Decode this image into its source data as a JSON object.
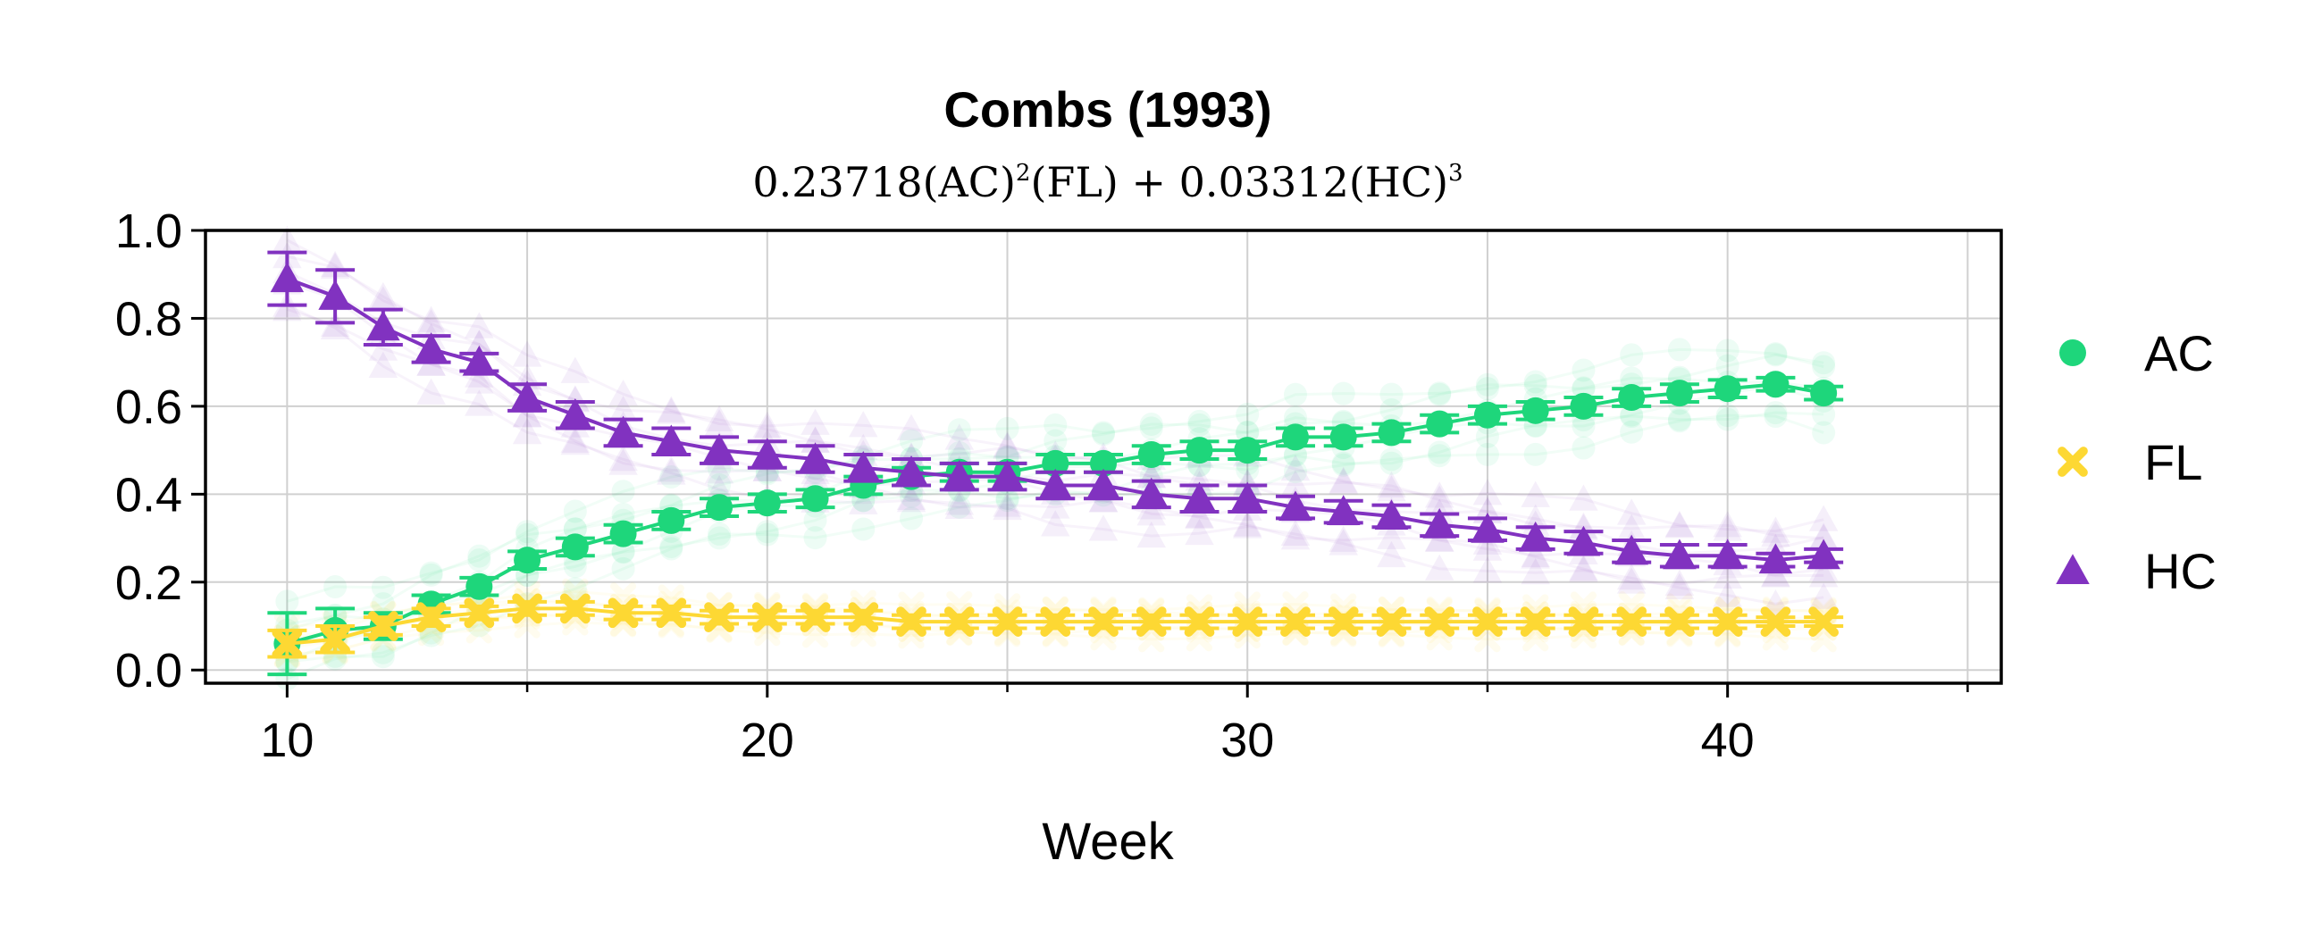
{
  "chart_data": {
    "type": "line",
    "title": "Combs (1993)",
    "subtitle": {
      "parts": [
        {
          "t": "0.23718(AC)"
        },
        {
          "t": "2",
          "sup": true
        },
        {
          "t": "(FL) + 0.03312(HC)"
        },
        {
          "t": "3",
          "sup": true
        }
      ]
    },
    "xlabel": "Week",
    "ylabel": "",
    "xlim": [
      8.3,
      45.7
    ],
    "ylim": [
      -0.03,
      1.0
    ],
    "xticks": [
      10,
      20,
      30,
      40
    ],
    "xminor": [
      15,
      25,
      35,
      45
    ],
    "yticks": [
      0.0,
      0.2,
      0.4,
      0.6,
      0.8,
      1.0
    ],
    "ytick_labels": [
      "0.0",
      "0.2",
      "0.4",
      "0.6",
      "0.8",
      "1.0"
    ],
    "grid": true,
    "legend_position": "outside-right",
    "series": [
      {
        "name": "AC",
        "color": "#1ed67b",
        "marker": "circle",
        "x": [
          10,
          11,
          12,
          13,
          14,
          15,
          16,
          17,
          18,
          19,
          20,
          21,
          22,
          23,
          24,
          25,
          26,
          27,
          28,
          29,
          30,
          31,
          32,
          33,
          34,
          35,
          36,
          37,
          38,
          39,
          40,
          41,
          42
        ],
        "y": [
          0.06,
          0.09,
          0.1,
          0.15,
          0.19,
          0.25,
          0.28,
          0.31,
          0.34,
          0.37,
          0.38,
          0.39,
          0.42,
          0.44,
          0.45,
          0.45,
          0.47,
          0.47,
          0.49,
          0.5,
          0.5,
          0.53,
          0.53,
          0.54,
          0.56,
          0.58,
          0.59,
          0.6,
          0.62,
          0.63,
          0.64,
          0.65,
          0.63
        ],
        "err": [
          0.07,
          0.05,
          0.03,
          0.02,
          0.02,
          0.02,
          0.02,
          0.02,
          0.02,
          0.02,
          0.02,
          0.02,
          0.02,
          0.02,
          0.02,
          0.02,
          0.02,
          0.02,
          0.02,
          0.02,
          0.02,
          0.02,
          0.02,
          0.02,
          0.02,
          0.02,
          0.02,
          0.02,
          0.02,
          0.02,
          0.02,
          0.015,
          0.015
        ]
      },
      {
        "name": "FL",
        "color": "#fdd833",
        "marker": "x",
        "x": [
          10,
          11,
          12,
          13,
          14,
          15,
          16,
          17,
          18,
          19,
          20,
          21,
          22,
          23,
          24,
          25,
          26,
          27,
          28,
          29,
          30,
          31,
          32,
          33,
          34,
          35,
          36,
          37,
          38,
          39,
          40,
          41,
          42
        ],
        "y": [
          0.06,
          0.07,
          0.1,
          0.12,
          0.13,
          0.14,
          0.14,
          0.13,
          0.13,
          0.12,
          0.12,
          0.12,
          0.12,
          0.11,
          0.11,
          0.11,
          0.11,
          0.11,
          0.11,
          0.11,
          0.11,
          0.11,
          0.11,
          0.11,
          0.11,
          0.11,
          0.11,
          0.11,
          0.11,
          0.11,
          0.11,
          0.11,
          0.11
        ],
        "err": [
          0.03,
          0.03,
          0.02,
          0.02,
          0.015,
          0.015,
          0.015,
          0.015,
          0.015,
          0.015,
          0.015,
          0.015,
          0.015,
          0.015,
          0.015,
          0.015,
          0.015,
          0.015,
          0.015,
          0.015,
          0.015,
          0.015,
          0.015,
          0.015,
          0.015,
          0.015,
          0.015,
          0.015,
          0.015,
          0.015,
          0.015,
          0.01,
          0.01
        ]
      },
      {
        "name": "HC",
        "color": "#8132c0",
        "marker": "triangle",
        "x": [
          10,
          11,
          12,
          13,
          14,
          15,
          16,
          17,
          18,
          19,
          20,
          21,
          22,
          23,
          24,
          25,
          26,
          27,
          28,
          29,
          30,
          31,
          32,
          33,
          34,
          35,
          36,
          37,
          38,
          39,
          40,
          41,
          42
        ],
        "y": [
          0.89,
          0.85,
          0.78,
          0.73,
          0.7,
          0.62,
          0.58,
          0.54,
          0.52,
          0.5,
          0.49,
          0.48,
          0.46,
          0.45,
          0.44,
          0.44,
          0.42,
          0.42,
          0.4,
          0.39,
          0.39,
          0.37,
          0.36,
          0.35,
          0.33,
          0.32,
          0.3,
          0.29,
          0.27,
          0.26,
          0.26,
          0.25,
          0.26
        ],
        "err": [
          0.06,
          0.06,
          0.04,
          0.03,
          0.02,
          0.03,
          0.03,
          0.03,
          0.03,
          0.03,
          0.03,
          0.03,
          0.03,
          0.03,
          0.03,
          0.03,
          0.03,
          0.03,
          0.03,
          0.03,
          0.03,
          0.025,
          0.025,
          0.025,
          0.025,
          0.025,
          0.025,
          0.025,
          0.025,
          0.025,
          0.025,
          0.015,
          0.015
        ]
      }
    ]
  }
}
